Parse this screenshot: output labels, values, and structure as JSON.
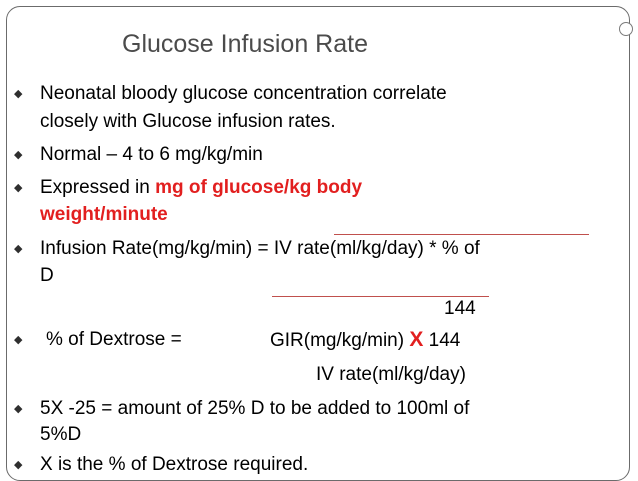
{
  "slide": {
    "title": "Glucose Infusion Rate",
    "bullet_glyph": "◆",
    "items": {
      "b1_l1": "Neonatal bloody glucose concentration correlate",
      "b1_l2": "closely with Glucose infusion rates.",
      "b2": "Normal – 4 to 6 mg/kg/min",
      "b3_pre": "Expressed in ",
      "b3_red": "mg of glucose/kg body",
      "b3_l2": "weight/minute",
      "b4_l1": "Infusion Rate(mg/kg/min) = IV rate(ml/kg/day) * % of",
      "b4_l2": "D",
      "b4_den": "144",
      "b5_label": "% of Dextrose =",
      "b5_num": "GIR(mg/kg/min)",
      "b5_x": "X",
      "b5_num2": "144",
      "b5_den": "IV rate(ml/kg/day)",
      "b6_l1": "5X -25 = amount of 25% D to be added to 100ml of",
      "b6_l2": "5%D",
      "b7": "X is the % of Dextrose required."
    },
    "colors": {
      "accent": "#e21f1f",
      "title": "#4b4b4b",
      "fraction_rule": "#c0504d"
    }
  }
}
